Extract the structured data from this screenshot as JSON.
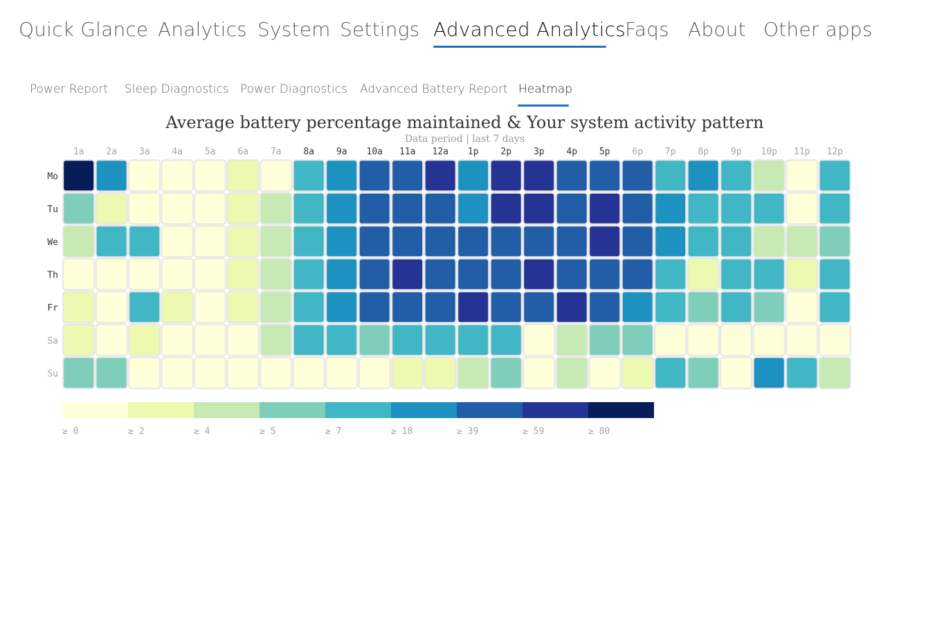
{
  "nav": {
    "tabs": [
      {
        "label": "Quick Glance",
        "active": false
      },
      {
        "label": "Analytics",
        "active": false
      },
      {
        "label": "System",
        "active": false
      },
      {
        "label": "Settings",
        "active": false
      },
      {
        "label": "Advanced Analytics",
        "active": true
      },
      {
        "label": "Faqs",
        "active": false
      },
      {
        "label": "About",
        "active": false
      },
      {
        "label": "Other apps",
        "active": false
      }
    ],
    "accent_color": "#1f6fc2"
  },
  "subnav": {
    "tabs": [
      {
        "label": "Power Report",
        "active": false
      },
      {
        "label": "Sleep Diagnostics",
        "active": false
      },
      {
        "label": "Power Diagnostics",
        "active": false
      },
      {
        "label": "Advanced Battery Report",
        "active": false
      },
      {
        "label": "Heatmap",
        "active": true
      }
    ]
  },
  "chart_data": {
    "type": "heatmap",
    "title": "Average battery percentage maintained & Your system activity pattern",
    "subtitle": "Data period | last 7 days",
    "x": [
      "1a",
      "2a",
      "3a",
      "4a",
      "5a",
      "6a",
      "7a",
      "8a",
      "9a",
      "10a",
      "11a",
      "12a",
      "1p",
      "2p",
      "3p",
      "4p",
      "5p",
      "6p",
      "7p",
      "8p",
      "9p",
      "10p",
      "11p",
      "12p"
    ],
    "x_highlight": [
      false,
      false,
      false,
      false,
      false,
      false,
      false,
      true,
      true,
      true,
      true,
      true,
      true,
      true,
      true,
      true,
      true,
      false,
      false,
      false,
      false,
      false,
      false,
      false
    ],
    "y": [
      "Mo",
      "Tu",
      "We",
      "Th",
      "Fr",
      "Sa",
      "Su"
    ],
    "y_highlight": [
      true,
      true,
      true,
      true,
      true,
      false,
      false
    ],
    "values": [
      [
        85,
        25,
        0,
        0,
        0,
        3,
        0,
        10,
        25,
        45,
        45,
        65,
        25,
        65,
        65,
        45,
        45,
        45,
        10,
        25,
        10,
        4,
        0,
        10
      ],
      [
        6,
        3,
        0,
        0,
        0,
        3,
        4,
        10,
        25,
        45,
        45,
        45,
        25,
        65,
        65,
        45,
        65,
        45,
        25,
        10,
        10,
        10,
        0,
        10
      ],
      [
        4,
        10,
        10,
        0,
        0,
        3,
        4,
        10,
        25,
        45,
        45,
        45,
        45,
        45,
        45,
        45,
        65,
        45,
        25,
        10,
        10,
        4,
        4,
        6
      ],
      [
        0,
        0,
        0,
        0,
        0,
        3,
        4,
        10,
        25,
        45,
        65,
        45,
        45,
        45,
        65,
        45,
        45,
        45,
        10,
        3,
        10,
        10,
        3,
        10
      ],
      [
        3,
        0,
        10,
        3,
        0,
        3,
        4,
        10,
        25,
        45,
        45,
        45,
        65,
        45,
        45,
        65,
        45,
        25,
        10,
        6,
        10,
        6,
        0,
        10
      ],
      [
        3,
        0,
        3,
        0,
        0,
        0,
        4,
        10,
        10,
        6,
        10,
        10,
        10,
        10,
        0,
        4,
        6,
        6,
        0,
        0,
        0,
        0,
        0,
        0
      ],
      [
        6,
        6,
        0,
        0,
        0,
        0,
        0,
        0,
        0,
        0,
        3,
        3,
        4,
        6,
        0,
        4,
        0,
        3,
        10,
        6,
        0,
        25,
        10,
        4
      ]
    ],
    "legend": {
      "thresholds": [
        0,
        2,
        4,
        5,
        7,
        18,
        39,
        59,
        80
      ],
      "labels": [
        "≥ 0",
        "≥ 2",
        "≥ 4",
        "≥ 5",
        "≥ 7",
        "≥ 18",
        "≥ 39",
        "≥ 59",
        "≥ 80"
      ],
      "colors": [
        "#ffffd9",
        "#edf8b1",
        "#c7e9b4",
        "#7fcdbb",
        "#41b6c4",
        "#1d91c0",
        "#225ea8",
        "#253494",
        "#081d58"
      ]
    }
  }
}
